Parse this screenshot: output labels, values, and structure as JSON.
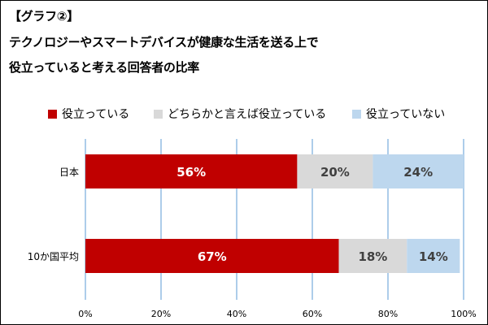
{
  "chart_data": {
    "type": "bar",
    "orientation": "horizontal",
    "stacked": true,
    "title_lines": [
      "【グラフ②】",
      "テクノロジーやスマートデバイスが健康な生活を送る上で",
      "役立っていると考える回答者の比率"
    ],
    "categories": [
      "日本",
      "10か国平均"
    ],
    "series": [
      {
        "name": "役立っている",
        "color": "#c00000",
        "label_color": "#ffffff",
        "values": [
          56,
          67
        ],
        "labels": [
          "56%",
          "67%"
        ]
      },
      {
        "name": "どちらかと言えば役立っている",
        "color": "#d9d9d9",
        "label_color": "#404040",
        "values": [
          20,
          18
        ],
        "labels": [
          "20%",
          "18%"
        ]
      },
      {
        "name": "役立っていない",
        "color": "#bdd7ee",
        "label_color": "#404040",
        "values": [
          24,
          14
        ],
        "labels": [
          "24%",
          "14%"
        ]
      }
    ],
    "xlim": [
      0,
      100
    ],
    "xticks": [
      0,
      20,
      40,
      60,
      80,
      100
    ],
    "xtick_labels": [
      "0%",
      "20%",
      "40%",
      "60%",
      "80%",
      "100%"
    ],
    "grid": true,
    "grid_color": "#5b9bd5",
    "legend_position": "top"
  }
}
